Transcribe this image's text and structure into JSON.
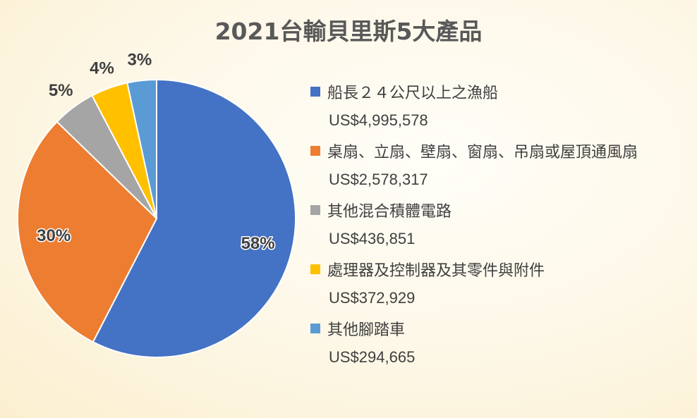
{
  "chart_data": {
    "type": "pie",
    "title": "2021台輸貝里斯5大產品",
    "legend_position": "right",
    "slices": [
      {
        "label": "船長２４公尺以上之漁船",
        "value_text": "US$4,995,578",
        "value": 4995578,
        "percent_text": "58%",
        "color": "#4472C4"
      },
      {
        "label": "桌扇、立扇、壁扇、窗扇、吊扇或屋頂通風扇",
        "value_text": "US$2,578,317",
        "value": 2578317,
        "percent_text": "30%",
        "color": "#ED7D31"
      },
      {
        "label": "其他混合積體電路",
        "value_text": "US$436,851",
        "value": 436851,
        "percent_text": "5%",
        "color": "#A5A5A5"
      },
      {
        "label": "處理器及控制器及其零件與附件",
        "value_text": "US$372,929",
        "value": 372929,
        "percent_text": "4%",
        "color": "#FFC000"
      },
      {
        "label": "其他腳踏車",
        "value_text": "US$294,665",
        "value": 294665,
        "percent_text": "3%",
        "color": "#5B9BD5"
      }
    ]
  }
}
